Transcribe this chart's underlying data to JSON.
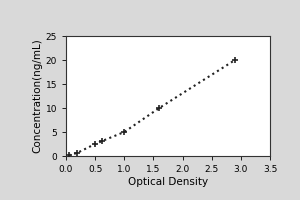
{
  "x_data": [
    0.047,
    0.188,
    0.5,
    0.62,
    1.0,
    1.6,
    2.9
  ],
  "y_data": [
    0.156,
    0.625,
    2.5,
    3.125,
    5.0,
    10.0,
    20.0
  ],
  "xlabel": "Optical Density",
  "ylabel": "Concentration(ng/mL)",
  "xlim": [
    0,
    3.5
  ],
  "ylim": [
    0,
    25
  ],
  "xticks": [
    0,
    0.5,
    1,
    1.5,
    2,
    2.5,
    3,
    3.5
  ],
  "yticks": [
    0,
    5,
    10,
    15,
    20,
    25
  ],
  "line_color": "#222222",
  "marker": "+",
  "marker_size": 5,
  "linestyle": "dotted",
  "linewidth": 1.5,
  "background_color": "#d9d9d9",
  "plot_bg_color": "#ffffff",
  "title": "",
  "tick_fontsize": 6.5,
  "label_fontsize": 7.5,
  "marker_edge_width": 1.2
}
